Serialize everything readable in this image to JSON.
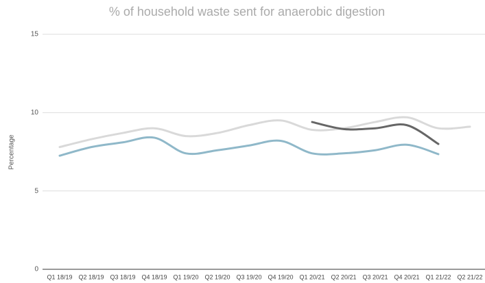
{
  "chart_data": {
    "type": "line",
    "title": "% of household waste sent for anaerobic digestion",
    "y_label": "Percentage",
    "categories": [
      "Q1 18/19",
      "Q2 18/19",
      "Q3 18/19",
      "Q4 18/19",
      "Q1 19/20",
      "Q2 19/20",
      "Q3 19/20",
      "Q4 19/20",
      "Q1 20/21",
      "Q2 20/21",
      "Q3 20/21",
      "Q4 20/21",
      "Q1 21/22",
      "Q2 21/22"
    ],
    "series": [
      {
        "color": "#d9d9d9",
        "values": [
          7.8,
          8.3,
          8.7,
          9.0,
          8.5,
          8.7,
          9.2,
          9.5,
          8.9,
          9.0,
          9.4,
          9.7,
          9.0,
          9.1
        ]
      },
      {
        "color": "#8fb8c9",
        "values": [
          7.25,
          7.8,
          8.1,
          8.4,
          7.4,
          7.6,
          7.9,
          8.2,
          7.4,
          7.4,
          7.6,
          7.95,
          7.35,
          null
        ]
      },
      {
        "color": "#666666",
        "values": [
          null,
          null,
          null,
          null,
          null,
          null,
          null,
          null,
          9.4,
          8.95,
          9.0,
          9.2,
          8.0,
          null
        ]
      }
    ],
    "ylim": [
      0,
      15
    ],
    "yticks": [
      0,
      5,
      10,
      15
    ],
    "grid": true
  }
}
